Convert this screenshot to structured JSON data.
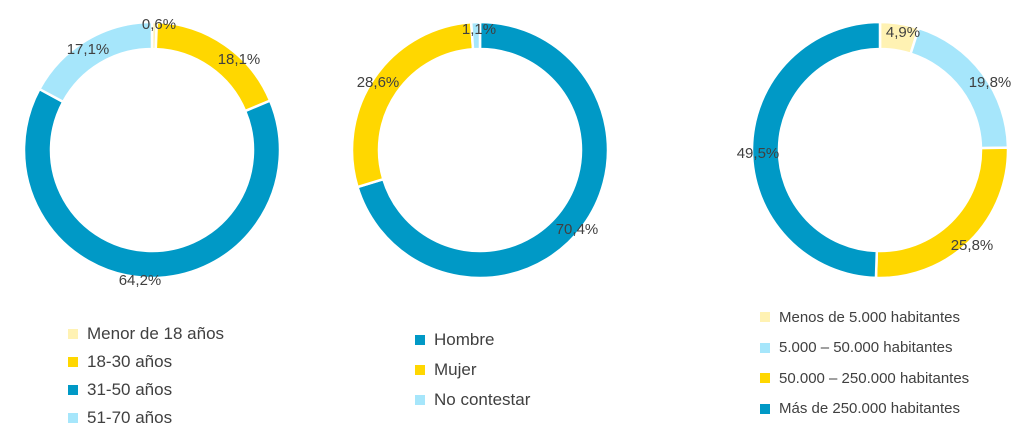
{
  "chart_data": [
    {
      "type": "pie",
      "variant": "donut",
      "categories": [
        "Menor de 18 años",
        "18-30 años",
        "31-50 años",
        "51-70 años"
      ],
      "values": [
        0.6,
        18.1,
        64.2,
        17.1
      ],
      "labels": [
        "0,6%",
        "18,1%",
        "64,2%",
        "17,1%"
      ],
      "colors": [
        "#FFF2B3",
        "#FFD700",
        "#0099C6",
        "#A6E6FB"
      ],
      "legend_position": "bottom"
    },
    {
      "type": "pie",
      "variant": "donut",
      "categories": [
        "Hombre",
        "Mujer",
        "No contestar"
      ],
      "values": [
        70.4,
        28.6,
        1.1
      ],
      "labels": [
        "70,4%",
        "28,6%",
        "1,1%"
      ],
      "colors": [
        "#0099C6",
        "#FFD700",
        "#A6E6FB"
      ],
      "legend_position": "bottom"
    },
    {
      "type": "pie",
      "variant": "donut",
      "categories": [
        "Menos de 5.000 habitantes",
        "5.000 – 50.000 habitantes",
        "50.000 – 250.000 habitantes",
        "Más de 250.000 habitantes"
      ],
      "values": [
        4.9,
        19.8,
        25.8,
        49.5
      ],
      "labels": [
        "4,9%",
        "19,8%",
        "25,8%",
        "49,5%"
      ],
      "colors": [
        "#FFF2B3",
        "#A6E6FB",
        "#FFD700",
        "#0099C6"
      ],
      "legend_position": "bottom"
    }
  ]
}
